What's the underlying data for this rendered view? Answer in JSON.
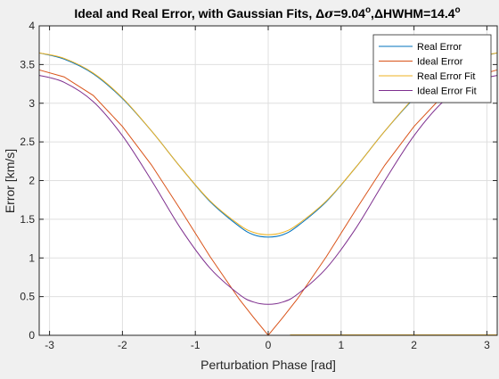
{
  "chart_data": {
    "type": "line",
    "title": "Ideal and Real Error, with Gaussian Fits, Δσ=9.04°,ΔHWHM=14.4°",
    "title_parts": {
      "prefix": "Ideal and Real Error, with Gaussian Fits, ",
      "delta1": "Δ",
      "sigma": "σ",
      "mid": "=9.04",
      "deg1": "o",
      "sep": ",",
      "delta2": "Δ",
      "tail": "HWHM=14.4",
      "deg2": "o"
    },
    "xlabel": "Perturbation Phase [rad]",
    "ylabel": "Error [km/s]",
    "xlim": [
      -3.1416,
      3.1416
    ],
    "ylim": [
      0,
      4
    ],
    "xticks": [
      -3,
      -2,
      -1,
      0,
      1,
      2,
      3
    ],
    "yticks": [
      0,
      0.5,
      1,
      1.5,
      2,
      2.5,
      3,
      3.5,
      4
    ],
    "xtick_labels": [
      "-3",
      "-2",
      "-1",
      "0",
      "1",
      "2",
      "3"
    ],
    "ytick_labels": [
      "0",
      "0.5",
      "1",
      "1.5",
      "2",
      "2.5",
      "3",
      "3.5",
      "4"
    ],
    "grid": true,
    "legend_position": "top-right",
    "x": [
      -3.14,
      -2.8,
      -2.4,
      -2.0,
      -1.6,
      -1.2,
      -0.8,
      -0.4,
      -0.2,
      0.0,
      0.2,
      0.4,
      0.8,
      1.2,
      1.6,
      2.0,
      2.4,
      2.8,
      3.14
    ],
    "series": [
      {
        "name": "Real Error",
        "color": "#0072BD",
        "values": [
          3.65,
          3.57,
          3.38,
          3.06,
          2.64,
          2.17,
          1.73,
          1.41,
          1.3,
          1.27,
          1.3,
          1.41,
          1.73,
          2.17,
          2.64,
          3.06,
          3.38,
          3.57,
          3.65
        ]
      },
      {
        "name": "Ideal Error",
        "color": "#D95319",
        "values": [
          3.43,
          3.34,
          3.1,
          2.7,
          2.2,
          1.62,
          1.02,
          0.47,
          0.23,
          0.0,
          0.23,
          0.47,
          1.02,
          1.62,
          2.2,
          2.7,
          3.1,
          3.34,
          3.43
        ]
      },
      {
        "name": "Real Error Fit",
        "color": "#EDB120",
        "values": [
          3.65,
          3.58,
          3.39,
          3.07,
          2.64,
          2.17,
          1.74,
          1.43,
          1.33,
          1.3,
          1.33,
          1.43,
          1.74,
          2.17,
          2.64,
          3.07,
          3.39,
          3.58,
          3.65
        ]
      },
      {
        "name": "Ideal Error Fit",
        "color": "#7E2F8E",
        "values": [
          3.36,
          3.27,
          3.02,
          2.58,
          2.0,
          1.38,
          0.87,
          0.53,
          0.43,
          0.4,
          0.43,
          0.53,
          0.87,
          1.38,
          2.0,
          2.58,
          3.02,
          3.27,
          3.36
        ]
      }
    ]
  }
}
